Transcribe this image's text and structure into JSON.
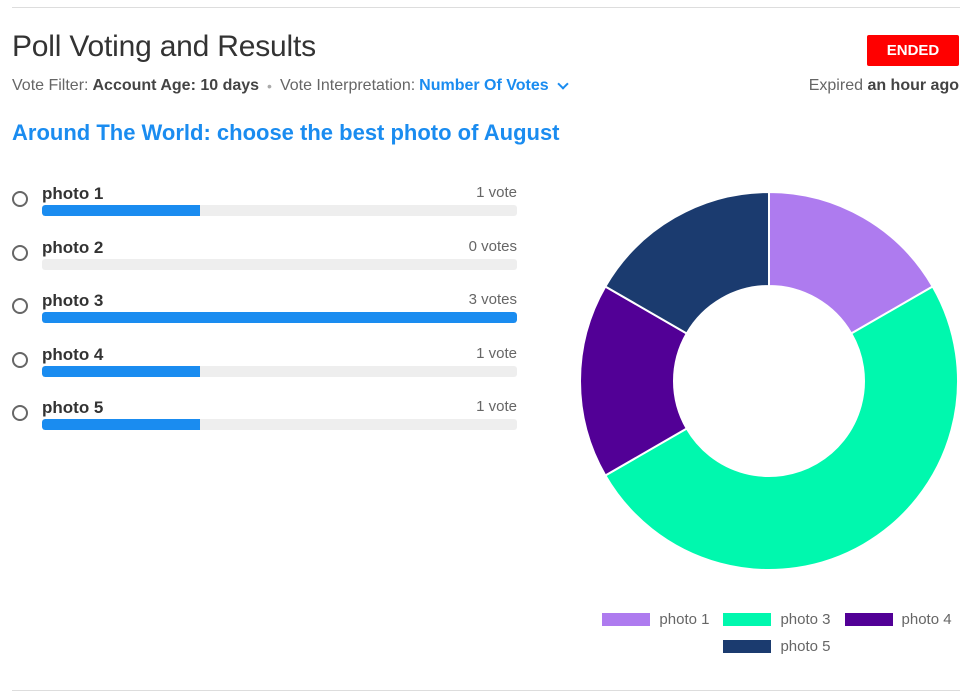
{
  "header": {
    "title": "Poll Voting and Results",
    "status": "ENDED",
    "status_color": "#ff0000"
  },
  "meta": {
    "filter_label": "Vote Filter:",
    "filter_value": "Account Age: 10 days",
    "separator": "•",
    "interpretation_label": "Vote Interpretation:",
    "interpretation_value": "Number Of Votes",
    "expired_prefix": "Expired",
    "expired_value": "an hour ago"
  },
  "poll": {
    "question": "Around The World: choose the best photo of August",
    "options": [
      {
        "label": "photo 1",
        "votes_text": "1 vote",
        "votes": 1
      },
      {
        "label": "photo 2",
        "votes_text": "0 votes",
        "votes": 0
      },
      {
        "label": "photo 3",
        "votes_text": "3 votes",
        "votes": 3
      },
      {
        "label": "photo 4",
        "votes_text": "1 vote",
        "votes": 1
      },
      {
        "label": "photo 5",
        "votes_text": "1 vote",
        "votes": 1
      }
    ],
    "bar_color": "#1a8cf0"
  },
  "chart_data": {
    "type": "pie",
    "categories": [
      "photo 1",
      "photo 3",
      "photo 4",
      "photo 5"
    ],
    "values": [
      1,
      3,
      1,
      1
    ],
    "colors": [
      "#ae7bef",
      "#00f8ae",
      "#520096",
      "#1b3b6f"
    ],
    "legend": "bottom"
  }
}
